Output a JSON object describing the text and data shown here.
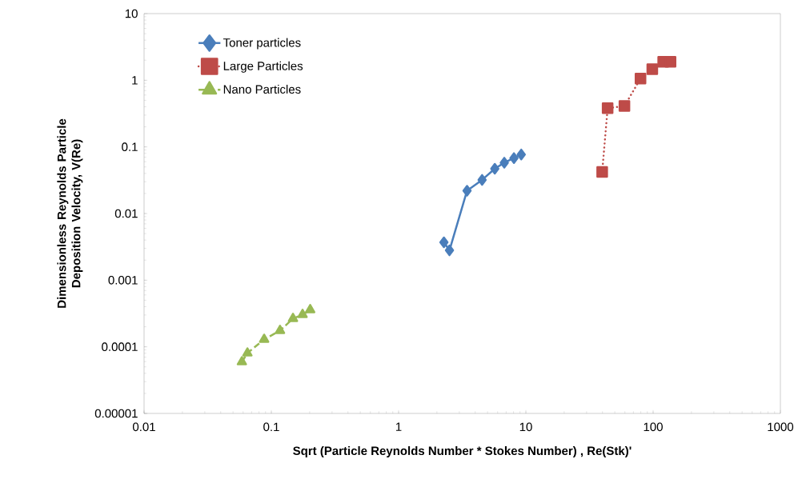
{
  "chart_data": {
    "type": "line",
    "xlabel": "Sqrt (Particle Reynolds Number * Stokes Number) , Re(Stk)'",
    "ylabel": "Dimensionless Reynolds Particle Deposition Velocity,  V(Re)",
    "log": "xy",
    "legend": "top left",
    "grid": false,
    "xlim": [
      0.01,
      1000
    ],
    "xticks": [
      0.01,
      0.1,
      1,
      10,
      100,
      1000
    ],
    "ylim": [
      1e-05,
      10
    ],
    "yticks": [
      {
        "value": 1e-05,
        "label": "0.00001"
      },
      0.0001,
      0.001,
      0.01,
      0.1,
      1,
      10
    ],
    "series": [
      {
        "name": "Toner particles",
        "color": "#4a7ebb",
        "marker": "diamond",
        "line_style": "solid",
        "x": [
          2.27,
          2.51,
          3.45,
          4.53,
          5.7,
          6.77,
          8.06,
          9.2
        ],
        "values": [
          0.0037,
          0.0028,
          0.022,
          0.032,
          0.047,
          0.058,
          0.068,
          0.077
        ]
      },
      {
        "name": "Large Particles",
        "color": "#be4b48",
        "marker": "square",
        "line_style": "dotted",
        "x": [
          39.8,
          43.9,
          59.5,
          79.6,
          98.5,
          120,
          137
        ],
        "values": [
          0.042,
          0.38,
          0.41,
          1.06,
          1.47,
          1.89,
          1.89
        ]
      },
      {
        "name": "Nano Particles",
        "color": "#98b954",
        "marker": "triangle",
        "line_style": "dashed",
        "x": [
          0.0587,
          0.0649,
          0.0878,
          0.117,
          0.148,
          0.176,
          0.202
        ],
        "values": [
          5.94e-05,
          8.05e-05,
          0.000129,
          0.000175,
          0.000265,
          0.000304,
          0.000359
        ]
      }
    ]
  }
}
